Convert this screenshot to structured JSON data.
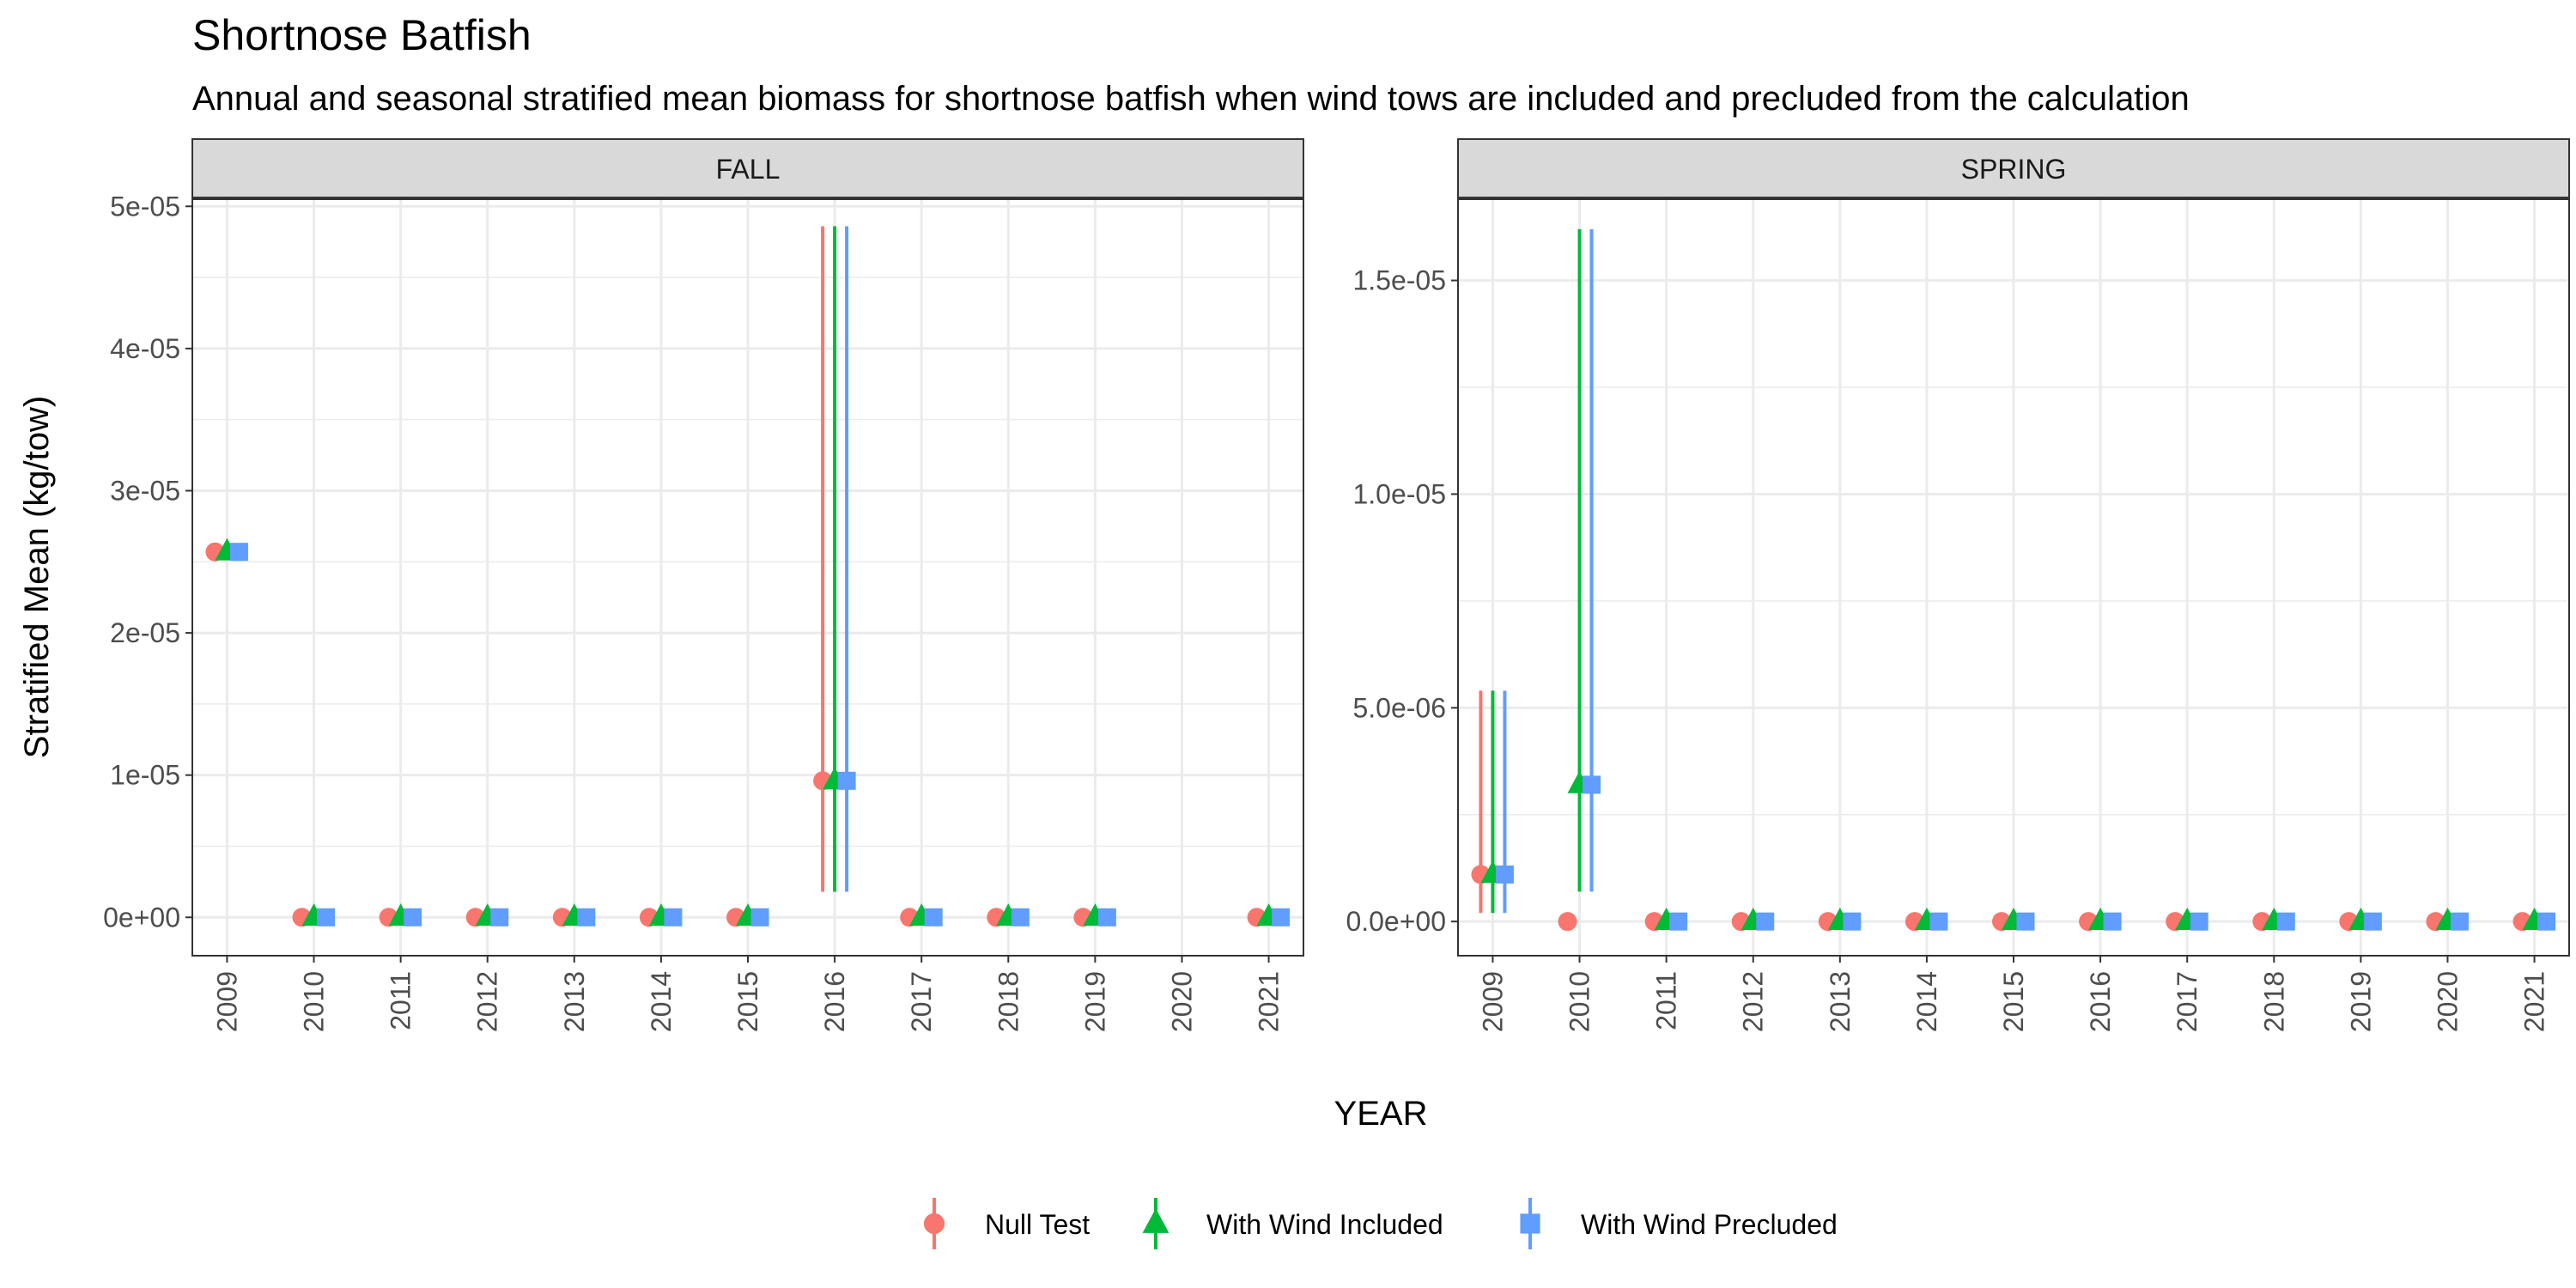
{
  "title": "Shortnose Batfish",
  "subtitle": "Annual and seasonal stratified mean biomass for shortnose batfish when wind tows are included and precluded from the calculation",
  "chart_data": {
    "type": "scatter",
    "title": "Shortnose Batfish",
    "subtitle": "Annual and seasonal stratified mean biomass for shortnose batfish when wind tows are included and precluded from the calculation",
    "xlabel": "YEAR",
    "ylabel": "Stratified Mean (kg/tow)",
    "grid": true,
    "legend_position": "bottom",
    "series": [
      {
        "name": "Null Test",
        "color": "#F8766D",
        "shape": "circle"
      },
      {
        "name": "With Wind Included",
        "color": "#00BA38",
        "shape": "triangle"
      },
      {
        "name": "With Wind Precluded",
        "color": "#619CFF",
        "shape": "square"
      }
    ],
    "panels": [
      {
        "name": "FALL",
        "categories": [
          "2009",
          "2010",
          "2011",
          "2012",
          "2013",
          "2014",
          "2015",
          "2016",
          "2017",
          "2018",
          "2019",
          "2020",
          "2021"
        ],
        "ylim": [
          -2.7e-06,
          5.05e-05
        ],
        "yticks": [
          0,
          1e-05,
          2e-05,
          3e-05,
          4e-05,
          5e-05
        ],
        "ytick_labels": [
          "0e+00",
          "1e-05",
          "2e-05",
          "3e-05",
          "4e-05",
          "5e-05"
        ],
        "data": [
          {
            "series": "Null Test",
            "values": [
              2.57e-05,
              0,
              0,
              0,
              0,
              0,
              0,
              9.6e-06,
              0,
              0,
              0,
              null,
              0
            ],
            "lower": [
              null,
              null,
              null,
              null,
              null,
              null,
              null,
              1.8e-06,
              null,
              null,
              null,
              null,
              null
            ],
            "upper": [
              null,
              null,
              null,
              null,
              null,
              null,
              null,
              4.86e-05,
              null,
              null,
              null,
              null,
              null
            ]
          },
          {
            "series": "With Wind Included",
            "values": [
              2.57e-05,
              0,
              0,
              0,
              0,
              0,
              0,
              9.6e-06,
              0,
              0,
              0,
              null,
              0
            ],
            "lower": [
              null,
              null,
              null,
              null,
              null,
              null,
              null,
              1.8e-06,
              null,
              null,
              null,
              null,
              null
            ],
            "upper": [
              null,
              null,
              null,
              null,
              null,
              null,
              null,
              4.86e-05,
              null,
              null,
              null,
              null,
              null
            ]
          },
          {
            "series": "With Wind Precluded",
            "values": [
              2.57e-05,
              0,
              0,
              0,
              0,
              0,
              0,
              9.6e-06,
              0,
              0,
              0,
              null,
              0
            ],
            "lower": [
              null,
              null,
              null,
              null,
              null,
              null,
              null,
              1.8e-06,
              null,
              null,
              null,
              null,
              null
            ],
            "upper": [
              null,
              null,
              null,
              null,
              null,
              null,
              null,
              4.86e-05,
              null,
              null,
              null,
              null,
              null
            ]
          }
        ]
      },
      {
        "name": "SPRING",
        "categories": [
          "2009",
          "2010",
          "2011",
          "2012",
          "2013",
          "2014",
          "2015",
          "2016",
          "2017",
          "2018",
          "2019",
          "2020",
          "2021"
        ],
        "ylim": [
          -8e-07,
          1.69e-05
        ],
        "yticks": [
          0,
          5e-06,
          1e-05,
          1.5e-05
        ],
        "ytick_labels": [
          "0.0e+00",
          "5.0e-06",
          "1.0e-05",
          "1.5e-05"
        ],
        "data": [
          {
            "series": "Null Test",
            "values": [
              1.1e-06,
              0,
              0,
              0,
              0,
              0,
              0,
              0,
              0,
              0,
              0,
              0,
              0
            ],
            "lower": [
              2e-07,
              null,
              null,
              null,
              null,
              null,
              null,
              null,
              null,
              null,
              null,
              null,
              null
            ],
            "upper": [
              5.4e-06,
              null,
              null,
              null,
              null,
              null,
              null,
              null,
              null,
              null,
              null,
              null,
              null
            ]
          },
          {
            "series": "With Wind Included",
            "values": [
              1.1e-06,
              3.2e-06,
              0,
              0,
              0,
              0,
              0,
              0,
              0,
              0,
              0,
              0,
              0
            ],
            "lower": [
              2e-07,
              7e-07,
              null,
              null,
              null,
              null,
              null,
              null,
              null,
              null,
              null,
              null,
              null
            ],
            "upper": [
              5.4e-06,
              1.62e-05,
              null,
              null,
              null,
              null,
              null,
              null,
              null,
              null,
              null,
              null,
              null
            ]
          },
          {
            "series": "With Wind Precluded",
            "values": [
              1.1e-06,
              3.2e-06,
              0,
              0,
              0,
              0,
              0,
              0,
              0,
              0,
              0,
              0,
              0
            ],
            "lower": [
              2e-07,
              7e-07,
              null,
              null,
              null,
              null,
              null,
              null,
              null,
              null,
              null,
              null,
              null
            ],
            "upper": [
              5.4e-06,
              1.62e-05,
              null,
              null,
              null,
              null,
              null,
              null,
              null,
              null,
              null,
              null,
              null
            ]
          }
        ]
      }
    ]
  }
}
